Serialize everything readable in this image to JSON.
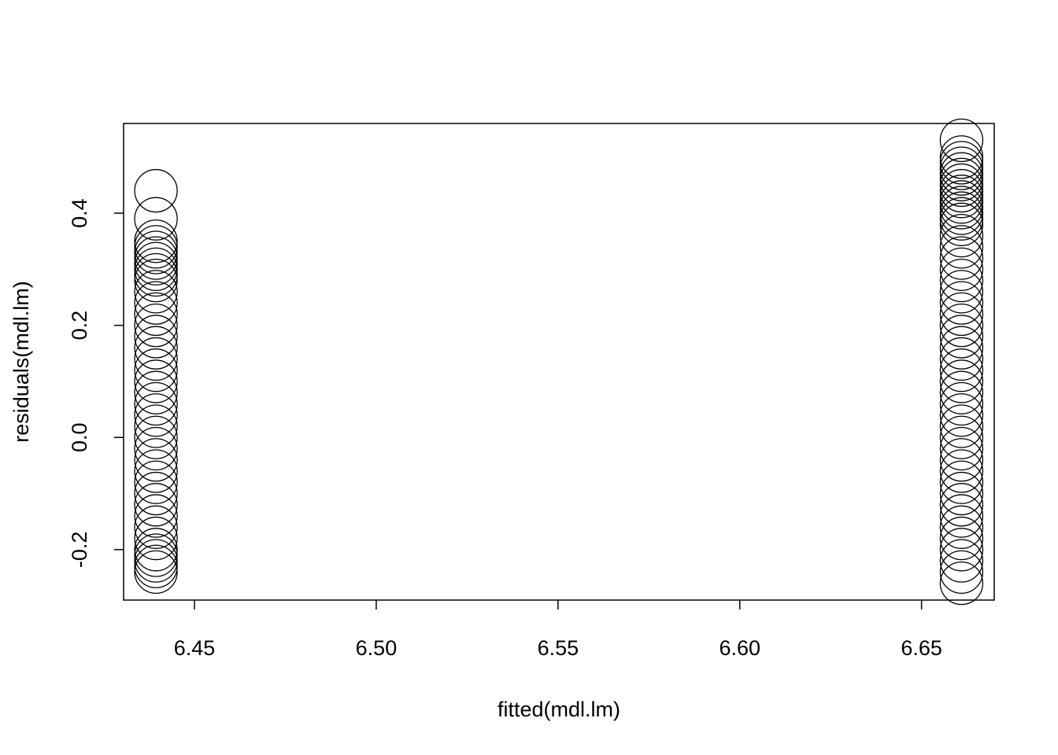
{
  "chart_data": {
    "type": "scatter",
    "xlabel": "fitted(mdl.lm)",
    "ylabel": "residuals(mdl.lm)",
    "color": "#000000",
    "series": [
      {
        "x": [
          6.4394,
          6.4394,
          6.4394,
          6.4394,
          6.4394,
          6.4394,
          6.4394,
          6.4394,
          6.4394,
          6.4394,
          6.4394,
          6.4394,
          6.4394,
          6.4394,
          6.4394,
          6.4394,
          6.4394,
          6.4394,
          6.4394,
          6.4394,
          6.4394,
          6.4394,
          6.4394,
          6.4394,
          6.4394,
          6.4394,
          6.4394,
          6.4394,
          6.4394,
          6.4394,
          6.4394,
          6.4394,
          6.4394,
          6.4394,
          6.4394,
          6.4394,
          6.4394,
          6.4394
        ],
        "values": [
          0.44,
          0.39,
          0.35,
          0.34,
          0.33,
          0.32,
          0.31,
          0.3,
          0.29,
          0.28,
          0.26,
          0.24,
          0.22,
          0.2,
          0.18,
          0.16,
          0.14,
          0.12,
          0.1,
          0.08,
          0.06,
          0.04,
          0.02,
          0.0,
          -0.02,
          -0.04,
          -0.06,
          -0.08,
          -0.1,
          -0.12,
          -0.14,
          -0.16,
          -0.18,
          -0.2,
          -0.21,
          -0.22,
          -0.23,
          -0.24
        ]
      },
      {
        "x": [
          6.661,
          6.661,
          6.661,
          6.661,
          6.661,
          6.661,
          6.661,
          6.661,
          6.661,
          6.661,
          6.661,
          6.661,
          6.661,
          6.661,
          6.661,
          6.661,
          6.661,
          6.661,
          6.661,
          6.661,
          6.661,
          6.661,
          6.661,
          6.661,
          6.661,
          6.661,
          6.661,
          6.661,
          6.661,
          6.661,
          6.661,
          6.661,
          6.661,
          6.661,
          6.661,
          6.661,
          6.661,
          6.661,
          6.661,
          6.661,
          6.661,
          6.661,
          6.661,
          6.661,
          6.661,
          6.661
        ],
        "values": [
          0.53,
          0.5,
          0.49,
          0.48,
          0.47,
          0.46,
          0.45,
          0.44,
          0.43,
          0.42,
          0.41,
          0.4,
          0.39,
          0.38,
          0.36,
          0.34,
          0.32,
          0.3,
          0.28,
          0.26,
          0.24,
          0.22,
          0.2,
          0.18,
          0.16,
          0.14,
          0.12,
          0.1,
          0.08,
          0.06,
          0.04,
          0.02,
          0.0,
          -0.02,
          -0.04,
          -0.06,
          -0.08,
          -0.1,
          -0.12,
          -0.14,
          -0.16,
          -0.18,
          -0.2,
          -0.22,
          -0.24,
          -0.26
        ]
      }
    ],
    "xlim": [
      6.4305,
      6.67
    ],
    "ylim": [
      -0.29,
      0.56
    ],
    "xticks": [
      6.45,
      {
        "value": 6.5,
        "label": "6.50"
      },
      6.55,
      {
        "value": 6.6,
        "label": "6.60"
      },
      6.65
    ],
    "yticks": [
      -0.2,
      {
        "value": 0,
        "label": "0.0"
      },
      0.2,
      0.4
    ]
  }
}
